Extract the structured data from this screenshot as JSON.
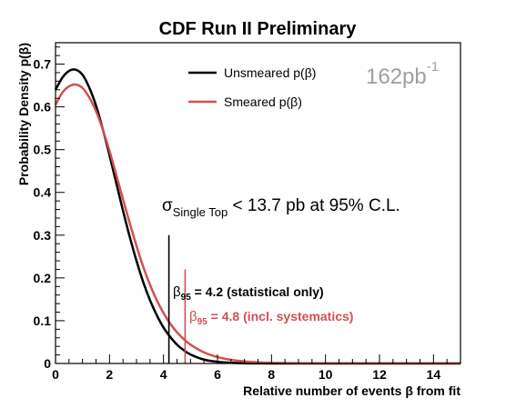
{
  "chart_data": {
    "type": "line",
    "title": "CDF Run II Preliminary",
    "xlabel": "Relative number of events β from fit",
    "ylabel": "Probability Density p(β)",
    "xlim": [
      0,
      15
    ],
    "ylim": [
      0,
      0.75
    ],
    "x_ticks": [
      0,
      2,
      4,
      6,
      8,
      10,
      12,
      14
    ],
    "y_ticks": [
      0,
      0.1,
      0.2,
      0.3,
      0.4,
      0.5,
      0.6,
      0.7
    ],
    "x_tick_labels": [
      "0",
      "2",
      "4",
      "6",
      "8",
      "10",
      "12",
      "14"
    ],
    "y_tick_labels": [
      "0",
      "0.1",
      "0.2",
      "0.3",
      "0.4",
      "0.5",
      "0.6",
      "0.7"
    ],
    "grid": false,
    "legend_position": "top-center",
    "series": [
      {
        "name": "Unsmeared p(β)",
        "color": "#000000",
        "x": [
          0,
          0.25,
          0.5,
          0.75,
          1.0,
          1.25,
          1.5,
          1.75,
          2.0,
          2.25,
          2.5,
          2.75,
          3.0,
          3.25,
          3.5,
          3.75,
          4.0,
          4.25,
          4.5,
          4.75,
          5.0,
          5.5,
          6.0,
          6.5,
          7.0,
          7.5,
          8.0,
          9.0,
          10.0,
          12.0,
          15.0
        ],
        "y": [
          0.64,
          0.668,
          0.684,
          0.687,
          0.675,
          0.645,
          0.603,
          0.548,
          0.487,
          0.422,
          0.357,
          0.296,
          0.24,
          0.19,
          0.148,
          0.113,
          0.084,
          0.062,
          0.044,
          0.031,
          0.021,
          0.009,
          0.004,
          0.0015,
          0.0005,
          0.0002,
          0.0001,
          0,
          0,
          0,
          0
        ]
      },
      {
        "name": "Smeared p(β)",
        "color": "#d05050",
        "x": [
          0,
          0.25,
          0.5,
          0.75,
          1.0,
          1.25,
          1.5,
          1.75,
          2.0,
          2.25,
          2.5,
          2.75,
          3.0,
          3.25,
          3.5,
          3.75,
          4.0,
          4.25,
          4.5,
          4.75,
          5.0,
          5.5,
          6.0,
          6.5,
          7.0,
          7.5,
          8.0,
          9.0,
          10.0,
          12.0,
          15.0
        ],
        "y": [
          0.605,
          0.633,
          0.648,
          0.652,
          0.644,
          0.622,
          0.59,
          0.547,
          0.497,
          0.441,
          0.384,
          0.328,
          0.275,
          0.226,
          0.184,
          0.148,
          0.118,
          0.093,
          0.073,
          0.057,
          0.044,
          0.026,
          0.015,
          0.0085,
          0.0048,
          0.0027,
          0.0015,
          0.0005,
          0.0001,
          0,
          0
        ]
      }
    ],
    "markers": [
      {
        "x": 4.2,
        "y_top": 0.3,
        "color": "#000000"
      },
      {
        "x": 4.8,
        "y_top": 0.22,
        "color": "#d05050"
      }
    ],
    "annotations": {
      "luminosity": "162pb",
      "luminosity_sup": "-1",
      "sigma_symbol": "σ",
      "sigma_sub": "Single Top",
      "sigma_text": " < 13.7 pb at 95% C.L.",
      "beta95_stat_symbol": "β",
      "beta95_stat_sub": "95",
      "beta95_stat_text": " = 4.2 (statistical only)",
      "beta95_syst_symbol": "β",
      "beta95_syst_sub": "95",
      "beta95_syst_text": " = 4.8 (incl. systematics)"
    }
  }
}
